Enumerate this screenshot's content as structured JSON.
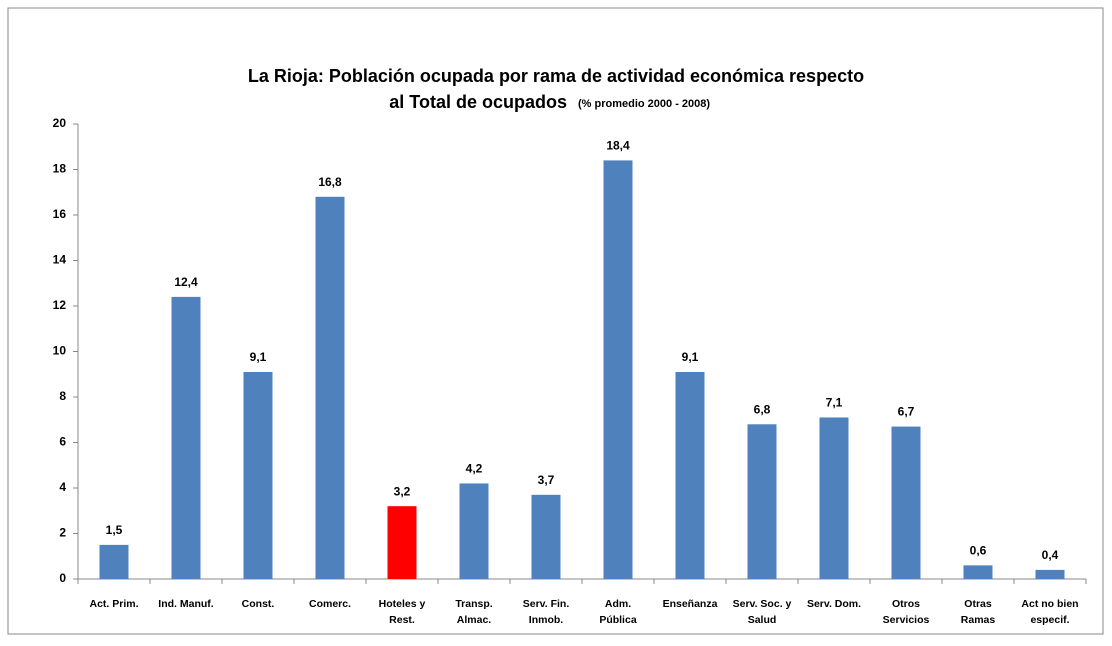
{
  "chart_data": {
    "type": "bar",
    "title": [
      "La Rioja: Población ocupada por rama de actividad económica respecto",
      "al Total de ocupados"
    ],
    "subtitle": "(% promedio 2000 - 2008)",
    "categories": [
      [
        "Act. Prim."
      ],
      [
        "Ind. Manuf."
      ],
      [
        "Const."
      ],
      [
        "Comerc."
      ],
      [
        "Hoteles y",
        "Rest."
      ],
      [
        "Transp.",
        "Almac."
      ],
      [
        "Serv. Fin.",
        "Inmob."
      ],
      [
        "Adm.",
        "Pública"
      ],
      [
        "Enseñanza"
      ],
      [
        "Serv. Soc. y",
        "Salud"
      ],
      [
        "Serv. Dom."
      ],
      [
        "Otros",
        "Servicios"
      ],
      [
        "Otras",
        "Ramas"
      ],
      [
        "Act no bien",
        "especif."
      ]
    ],
    "values": [
      1.5,
      12.4,
      9.1,
      16.8,
      3.2,
      4.2,
      3.7,
      18.4,
      9.1,
      6.8,
      7.1,
      6.7,
      0.6,
      0.4
    ],
    "value_labels": [
      "1,5",
      "12,4",
      "9,1",
      "16,8",
      "3,2",
      "4,2",
      "3,7",
      "18,4",
      "9,1",
      "6,8",
      "7,1",
      "6,7",
      "0,6",
      "0,4"
    ],
    "colors": [
      "#4f81bd",
      "#4f81bd",
      "#4f81bd",
      "#4f81bd",
      "#ff0000",
      "#4f81bd",
      "#4f81bd",
      "#4f81bd",
      "#4f81bd",
      "#4f81bd",
      "#4f81bd",
      "#4f81bd",
      "#4f81bd",
      "#4f81bd"
    ],
    "ylim": [
      0,
      20
    ],
    "yticks": [
      0,
      2,
      4,
      6,
      8,
      10,
      12,
      14,
      16,
      18,
      20
    ],
    "grid": false
  }
}
